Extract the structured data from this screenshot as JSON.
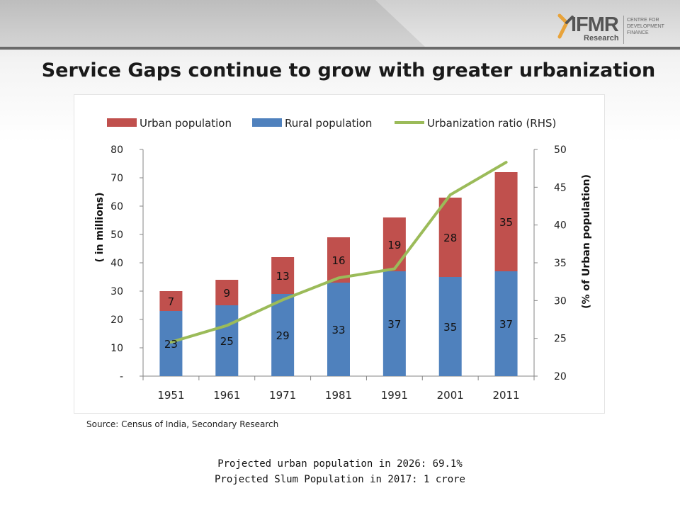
{
  "header": {
    "logo_text": "IFMR",
    "logo_subtext": "Research",
    "logo_tagline": [
      "CENTRE FOR",
      "DEVELOPMENT",
      "FINANCE"
    ]
  },
  "page_title": "Service Gaps continue to grow with greater urbanization",
  "source_note": "Source: Census of India, Secondary Research",
  "projections": [
    "Projected urban population in 2026: 69.1%",
    "Projected Slum Population in 2017: 1 crore"
  ],
  "colors": {
    "urban": "#c0504d",
    "rural": "#4f81bd",
    "ratio": "#9bbb59",
    "accent": "#e8a33a"
  },
  "chart_data": {
    "type": "bar",
    "stacked": true,
    "categories": [
      "1951",
      "1961",
      "1971",
      "1981",
      "1991",
      "2001",
      "2011"
    ],
    "series": [
      {
        "name": "Rural population",
        "values": [
          23,
          25,
          29,
          33,
          37,
          35,
          37
        ],
        "color": "#4f81bd"
      },
      {
        "name": "Urban population",
        "values": [
          7,
          9,
          13,
          16,
          19,
          28,
          35
        ],
        "color": "#c0504d"
      }
    ],
    "line_series": {
      "name": "Urbanization ratio (RHS)",
      "axis": "right",
      "values": [
        24.5,
        26.7,
        30.1,
        33.0,
        34.2,
        44.0,
        48.3
      ],
      "color": "#9bbb59"
    },
    "legend": [
      "Urban population",
      "Rural population",
      "Urbanization ratio (RHS)"
    ],
    "legend_position": "top",
    "ylabel": "( in millions)",
    "y2label": "(% of Urban population)",
    "ylim": [
      0,
      80
    ],
    "y2lim": [
      20,
      50
    ],
    "yticks": [
      "-",
      "10",
      "20",
      "30",
      "40",
      "50",
      "60",
      "70",
      "80"
    ],
    "y2ticks": [
      "20",
      "25",
      "30",
      "35",
      "40",
      "45",
      "50"
    ],
    "grid": false
  }
}
